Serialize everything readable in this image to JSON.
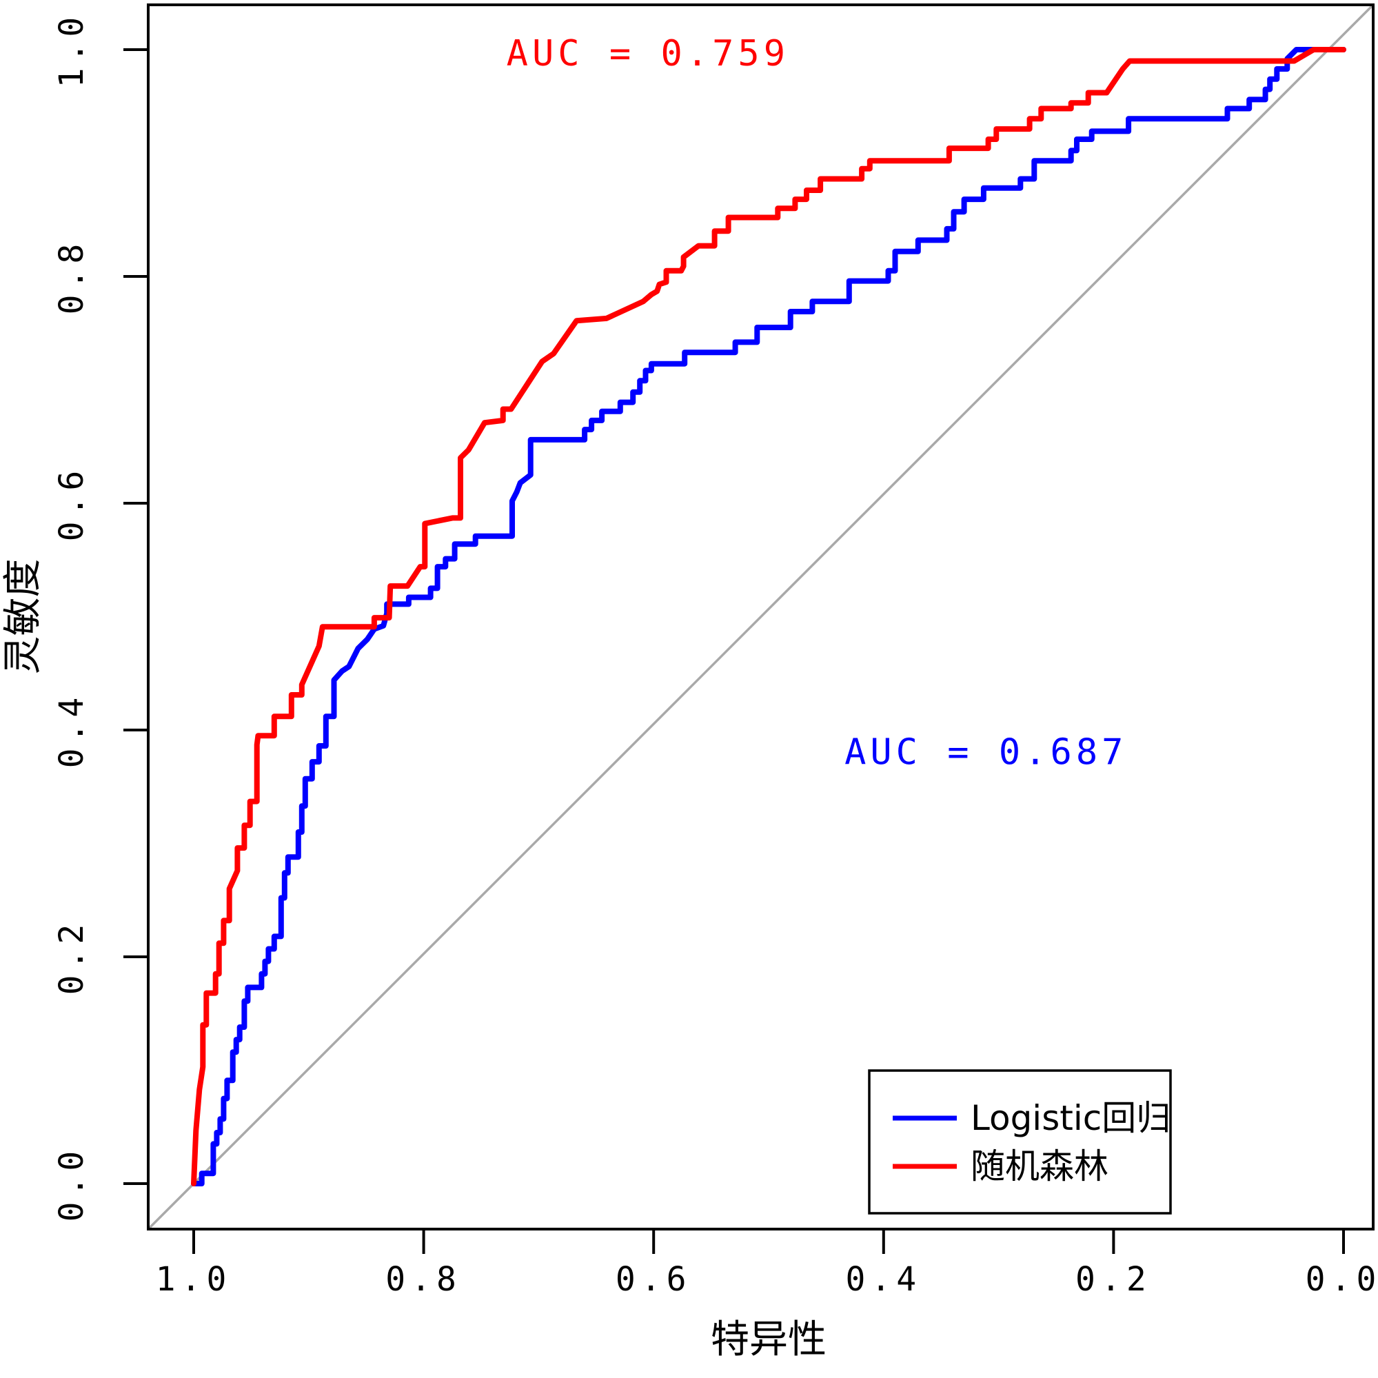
{
  "chart_data": {
    "type": "line",
    "subtype": "roc-curves",
    "title": "",
    "xlabel": "特异性",
    "ylabel": "灵敏度",
    "x_axis": {
      "tick_labels": [
        "1.0",
        "0.8",
        "0.6",
        "0.4",
        "0.2",
        "0.0"
      ],
      "tick_values": [
        1.0,
        0.8,
        0.6,
        0.4,
        0.2,
        0.0
      ],
      "range": [
        1.0,
        0.0
      ],
      "reversed": true
    },
    "y_axis": {
      "tick_labels": [
        "0.0",
        "0.2",
        "0.4",
        "0.6",
        "0.8",
        "1.0"
      ],
      "tick_values": [
        0.0,
        0.2,
        0.4,
        0.6,
        0.8,
        1.0
      ],
      "range": [
        0.0,
        1.0
      ]
    },
    "grid": false,
    "diagonal_reference": {
      "present": true,
      "color": "#A9A9A9"
    },
    "annotations": [
      {
        "text": "AUC = 0.759",
        "color": "#FF0000",
        "x_spec": 0.605,
        "y_sens": 0.986
      },
      {
        "text": "AUC = 0.687",
        "color": "#0000FF",
        "x_spec": 0.311,
        "y_sens": 0.37
      }
    ],
    "legend": {
      "position": "bottom-right",
      "entries": [
        {
          "label": "Logistic回归",
          "color": "#0000FF"
        },
        {
          "label": "随机森林",
          "color": "#FF0000"
        }
      ]
    },
    "series": [
      {
        "name": "Logistic回归",
        "color": "#0000FF",
        "auc": 0.687,
        "points": [
          [
            1.0,
            0.0
          ],
          [
            0.993,
            0.0
          ],
          [
            0.993,
            0.009
          ],
          [
            0.983,
            0.009
          ],
          [
            0.983,
            0.035
          ],
          [
            0.98,
            0.035
          ],
          [
            0.98,
            0.045
          ],
          [
            0.977,
            0.045
          ],
          [
            0.977,
            0.057
          ],
          [
            0.974,
            0.057
          ],
          [
            0.974,
            0.075
          ],
          [
            0.971,
            0.075
          ],
          [
            0.971,
            0.091
          ],
          [
            0.966,
            0.091
          ],
          [
            0.966,
            0.116
          ],
          [
            0.963,
            0.116
          ],
          [
            0.963,
            0.127
          ],
          [
            0.96,
            0.127
          ],
          [
            0.96,
            0.138
          ],
          [
            0.956,
            0.138
          ],
          [
            0.956,
            0.161
          ],
          [
            0.953,
            0.161
          ],
          [
            0.953,
            0.173
          ],
          [
            0.941,
            0.173
          ],
          [
            0.941,
            0.185
          ],
          [
            0.938,
            0.185
          ],
          [
            0.938,
            0.196
          ],
          [
            0.935,
            0.196
          ],
          [
            0.935,
            0.207
          ],
          [
            0.93,
            0.207
          ],
          [
            0.93,
            0.218
          ],
          [
            0.924,
            0.218
          ],
          [
            0.924,
            0.252
          ],
          [
            0.921,
            0.252
          ],
          [
            0.921,
            0.274
          ],
          [
            0.918,
            0.274
          ],
          [
            0.918,
            0.288
          ],
          [
            0.909,
            0.288
          ],
          [
            0.909,
            0.31
          ],
          [
            0.906,
            0.31
          ],
          [
            0.906,
            0.333
          ],
          [
            0.903,
            0.333
          ],
          [
            0.903,
            0.357
          ],
          [
            0.897,
            0.357
          ],
          [
            0.897,
            0.372
          ],
          [
            0.891,
            0.372
          ],
          [
            0.891,
            0.386
          ],
          [
            0.885,
            0.386
          ],
          [
            0.885,
            0.412
          ],
          [
            0.878,
            0.412
          ],
          [
            0.878,
            0.444
          ],
          [
            0.871,
            0.452
          ],
          [
            0.865,
            0.456
          ],
          [
            0.861,
            0.464
          ],
          [
            0.857,
            0.472
          ],
          [
            0.849,
            0.48
          ],
          [
            0.843,
            0.489
          ],
          [
            0.835,
            0.492
          ],
          [
            0.832,
            0.503
          ],
          [
            0.832,
            0.511
          ],
          [
            0.813,
            0.511
          ],
          [
            0.813,
            0.517
          ],
          [
            0.794,
            0.517
          ],
          [
            0.794,
            0.525
          ],
          [
            0.788,
            0.525
          ],
          [
            0.788,
            0.544
          ],
          [
            0.781,
            0.544
          ],
          [
            0.781,
            0.551
          ],
          [
            0.773,
            0.551
          ],
          [
            0.773,
            0.564
          ],
          [
            0.755,
            0.564
          ],
          [
            0.755,
            0.571
          ],
          [
            0.723,
            0.571
          ],
          [
            0.723,
            0.602
          ],
          [
            0.719,
            0.61
          ],
          [
            0.716,
            0.618
          ],
          [
            0.707,
            0.625
          ],
          [
            0.707,
            0.656
          ],
          [
            0.66,
            0.656
          ],
          [
            0.66,
            0.665
          ],
          [
            0.654,
            0.665
          ],
          [
            0.654,
            0.673
          ],
          [
            0.645,
            0.673
          ],
          [
            0.645,
            0.681
          ],
          [
            0.629,
            0.681
          ],
          [
            0.629,
            0.689
          ],
          [
            0.618,
            0.689
          ],
          [
            0.618,
            0.698
          ],
          [
            0.612,
            0.698
          ],
          [
            0.612,
            0.708
          ],
          [
            0.607,
            0.708
          ],
          [
            0.607,
            0.717
          ],
          [
            0.602,
            0.717
          ],
          [
            0.602,
            0.723
          ],
          [
            0.573,
            0.723
          ],
          [
            0.573,
            0.733
          ],
          [
            0.529,
            0.733
          ],
          [
            0.529,
            0.742
          ],
          [
            0.51,
            0.742
          ],
          [
            0.51,
            0.755
          ],
          [
            0.481,
            0.755
          ],
          [
            0.481,
            0.769
          ],
          [
            0.462,
            0.769
          ],
          [
            0.462,
            0.778
          ],
          [
            0.43,
            0.778
          ],
          [
            0.43,
            0.796
          ],
          [
            0.396,
            0.796
          ],
          [
            0.396,
            0.805
          ],
          [
            0.39,
            0.805
          ],
          [
            0.39,
            0.822
          ],
          [
            0.37,
            0.822
          ],
          [
            0.37,
            0.832
          ],
          [
            0.345,
            0.832
          ],
          [
            0.345,
            0.842
          ],
          [
            0.339,
            0.842
          ],
          [
            0.339,
            0.857
          ],
          [
            0.33,
            0.857
          ],
          [
            0.33,
            0.868
          ],
          [
            0.313,
            0.868
          ],
          [
            0.313,
            0.878
          ],
          [
            0.281,
            0.878
          ],
          [
            0.281,
            0.886
          ],
          [
            0.269,
            0.886
          ],
          [
            0.269,
            0.902
          ],
          [
            0.237,
            0.902
          ],
          [
            0.237,
            0.911
          ],
          [
            0.232,
            0.911
          ],
          [
            0.232,
            0.921
          ],
          [
            0.219,
            0.921
          ],
          [
            0.219,
            0.928
          ],
          [
            0.187,
            0.928
          ],
          [
            0.187,
            0.939
          ],
          [
            0.101,
            0.939
          ],
          [
            0.101,
            0.948
          ],
          [
            0.082,
            0.948
          ],
          [
            0.082,
            0.956
          ],
          [
            0.068,
            0.956
          ],
          [
            0.068,
            0.965
          ],
          [
            0.064,
            0.965
          ],
          [
            0.064,
            0.974
          ],
          [
            0.058,
            0.974
          ],
          [
            0.058,
            0.983
          ],
          [
            0.049,
            0.983
          ],
          [
            0.049,
            0.992
          ],
          [
            0.041,
            1.0
          ],
          [
            0.0,
            1.0
          ]
        ]
      },
      {
        "name": "随机森林",
        "color": "#FF0000",
        "auc": 0.759,
        "points": [
          [
            1.0,
            0.0
          ],
          [
            0.998,
            0.047
          ],
          [
            0.995,
            0.083
          ],
          [
            0.992,
            0.103
          ],
          [
            0.992,
            0.14
          ],
          [
            0.989,
            0.14
          ],
          [
            0.989,
            0.168
          ],
          [
            0.981,
            0.168
          ],
          [
            0.981,
            0.185
          ],
          [
            0.978,
            0.185
          ],
          [
            0.978,
            0.212
          ],
          [
            0.974,
            0.212
          ],
          [
            0.974,
            0.232
          ],
          [
            0.969,
            0.232
          ],
          [
            0.969,
            0.26
          ],
          [
            0.962,
            0.276
          ],
          [
            0.962,
            0.296
          ],
          [
            0.956,
            0.296
          ],
          [
            0.956,
            0.316
          ],
          [
            0.951,
            0.316
          ],
          [
            0.951,
            0.337
          ],
          [
            0.945,
            0.337
          ],
          [
            0.945,
            0.387
          ],
          [
            0.944,
            0.395
          ],
          [
            0.93,
            0.395
          ],
          [
            0.93,
            0.412
          ],
          [
            0.915,
            0.412
          ],
          [
            0.915,
            0.431
          ],
          [
            0.906,
            0.431
          ],
          [
            0.906,
            0.44
          ],
          [
            0.891,
            0.474
          ],
          [
            0.888,
            0.491
          ],
          [
            0.843,
            0.491
          ],
          [
            0.843,
            0.499
          ],
          [
            0.83,
            0.499
          ],
          [
            0.829,
            0.527
          ],
          [
            0.814,
            0.527
          ],
          [
            0.803,
            0.544
          ],
          [
            0.799,
            0.544
          ],
          [
            0.799,
            0.582
          ],
          [
            0.775,
            0.587
          ],
          [
            0.768,
            0.587
          ],
          [
            0.768,
            0.64
          ],
          [
            0.761,
            0.647
          ],
          [
            0.747,
            0.671
          ],
          [
            0.731,
            0.673
          ],
          [
            0.731,
            0.683
          ],
          [
            0.724,
            0.683
          ],
          [
            0.697,
            0.725
          ],
          [
            0.687,
            0.732
          ],
          [
            0.667,
            0.761
          ],
          [
            0.641,
            0.763
          ],
          [
            0.609,
            0.778
          ],
          [
            0.602,
            0.784
          ],
          [
            0.597,
            0.787
          ],
          [
            0.595,
            0.793
          ],
          [
            0.589,
            0.795
          ],
          [
            0.589,
            0.805
          ],
          [
            0.576,
            0.805
          ],
          [
            0.574,
            0.809
          ],
          [
            0.574,
            0.817
          ],
          [
            0.561,
            0.827
          ],
          [
            0.547,
            0.827
          ],
          [
            0.547,
            0.84
          ],
          [
            0.535,
            0.84
          ],
          [
            0.535,
            0.852
          ],
          [
            0.492,
            0.852
          ],
          [
            0.492,
            0.86
          ],
          [
            0.477,
            0.86
          ],
          [
            0.477,
            0.868
          ],
          [
            0.467,
            0.868
          ],
          [
            0.467,
            0.876
          ],
          [
            0.455,
            0.876
          ],
          [
            0.455,
            0.886
          ],
          [
            0.419,
            0.886
          ],
          [
            0.419,
            0.895
          ],
          [
            0.412,
            0.895
          ],
          [
            0.412,
            0.902
          ],
          [
            0.343,
            0.902
          ],
          [
            0.343,
            0.913
          ],
          [
            0.309,
            0.913
          ],
          [
            0.309,
            0.921
          ],
          [
            0.302,
            0.921
          ],
          [
            0.302,
            0.93
          ],
          [
            0.273,
            0.93
          ],
          [
            0.273,
            0.939
          ],
          [
            0.263,
            0.939
          ],
          [
            0.263,
            0.948
          ],
          [
            0.237,
            0.948
          ],
          [
            0.237,
            0.953
          ],
          [
            0.222,
            0.953
          ],
          [
            0.222,
            0.962
          ],
          [
            0.206,
            0.962
          ],
          [
            0.192,
            0.983
          ],
          [
            0.186,
            0.99
          ],
          [
            0.043,
            0.99
          ],
          [
            0.026,
            1.0
          ],
          [
            0.0,
            1.0
          ]
        ]
      }
    ],
    "colors": {
      "axis": "#000000",
      "background": "#ffffff",
      "reference_line": "#A9A9A9"
    }
  }
}
